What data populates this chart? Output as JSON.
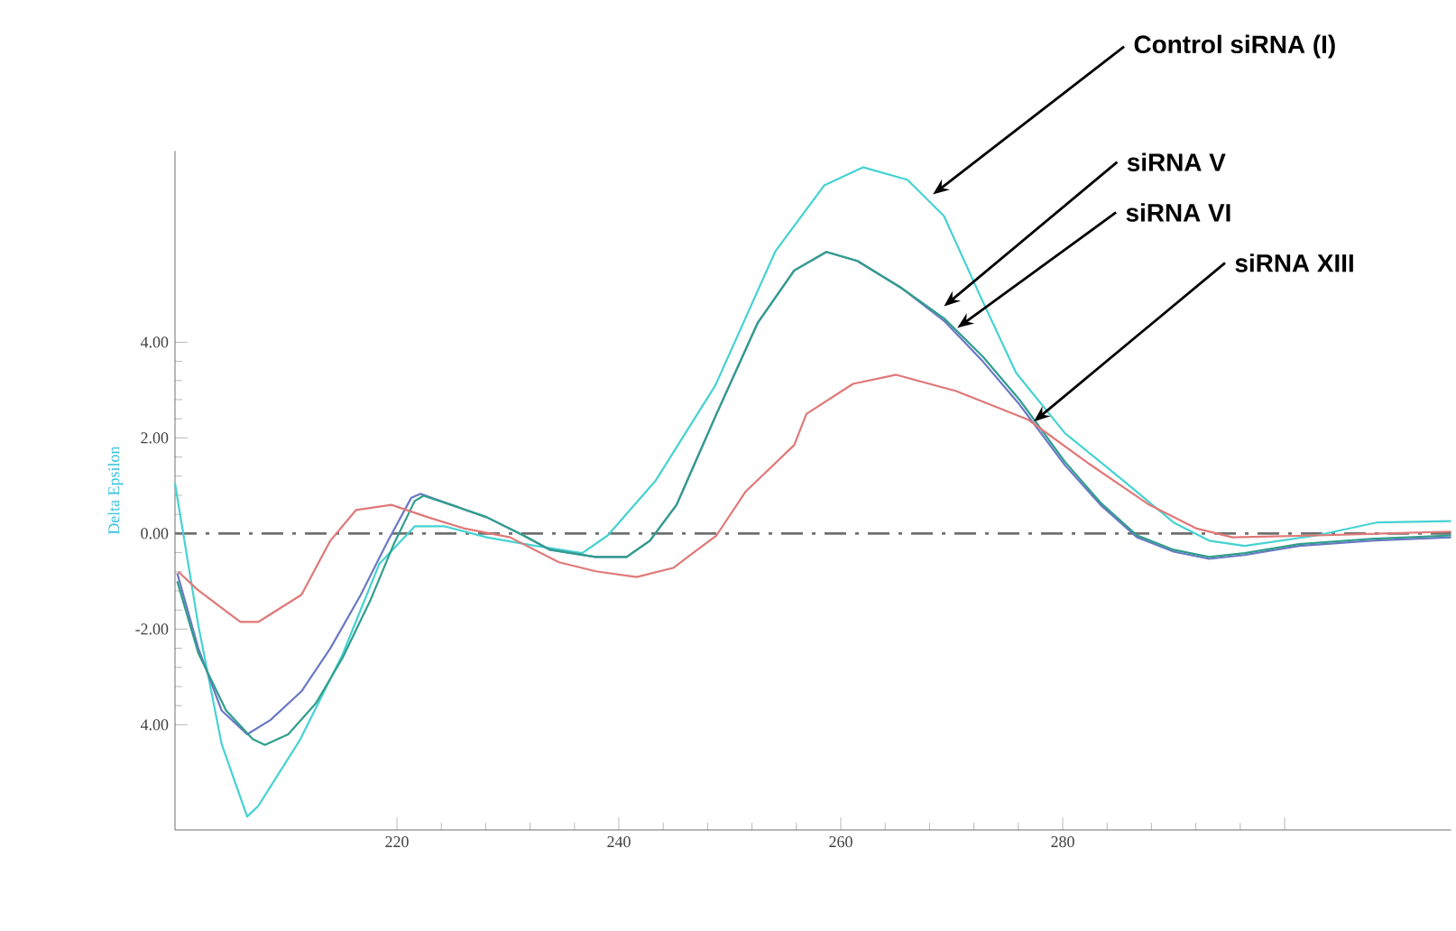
{
  "chart_data": {
    "type": "line",
    "ylabel": "Delta Epsilon",
    "xlim": [
      200,
      315
    ],
    "ylim": [
      -6.2,
      8
    ],
    "xticks": [
      220,
      240,
      260,
      280,
      {
        "value": 300,
        "label": null
      }
    ],
    "yticks": [
      {
        "value": -4,
        "label": "4.00"
      },
      {
        "value": -2,
        "label": "-2.00"
      },
      {
        "value": 0,
        "label": "0.00"
      },
      {
        "value": 2,
        "label": "2.00"
      },
      {
        "value": 4,
        "label": "4.00"
      }
    ],
    "grid": false,
    "marker": "none",
    "line_style": "solid",
    "series": [
      {
        "color": "#45d2d2",
        "x": [
          200,
          202.1,
          204.2,
          206.5,
          207.5,
          211.3,
          215.1,
          218.4,
          221.6,
          224.3,
          228.1,
          232.5,
          236.7,
          239,
          243.3,
          248.7,
          254.1,
          258.5,
          262,
          266,
          269.3,
          272.5,
          275.8,
          280.2,
          285.5,
          290,
          293.2,
          296.4,
          302.9,
          308.3,
          315
        ],
        "values": [
          1.05,
          -1.92,
          -4.4,
          -5.92,
          -5.7,
          -4.3,
          -2.53,
          -0.64,
          0.15,
          0.15,
          -0.08,
          -0.26,
          -0.41,
          -0.04,
          1.1,
          3.1,
          5.9,
          7.28,
          7.66,
          7.4,
          6.64,
          5.0,
          3.36,
          2.1,
          1.1,
          0.23,
          -0.15,
          -0.26,
          -0.04,
          0.23,
          0.26
        ]
      },
      {
        "color": "#6a78c4",
        "x": [
          200.2,
          202.1,
          204.2,
          206.5,
          208.6,
          211.4,
          214,
          216.7,
          219.2,
          221.3,
          222.1,
          224.9,
          228.1,
          231.4,
          233.8,
          237.9,
          240.7,
          242.8,
          245.2,
          248.8,
          252.5,
          255.8,
          258.7,
          261.5,
          265.5,
          269.3,
          272.8,
          276.1,
          280.2,
          283.4,
          286.7,
          290,
          293.2,
          296.4,
          301.3,
          307.8,
          315
        ],
        "values": [
          -0.83,
          -2.4,
          -3.7,
          -4.2,
          -3.9,
          -3.3,
          -2.4,
          -1.3,
          -0.15,
          0.75,
          0.83,
          0.6,
          0.34,
          -0.04,
          -0.34,
          -0.49,
          -0.49,
          -0.15,
          0.6,
          2.5,
          4.4,
          5.5,
          5.89,
          5.7,
          5.13,
          4.45,
          3.6,
          2.7,
          1.43,
          0.6,
          -0.08,
          -0.38,
          -0.53,
          -0.45,
          -0.26,
          -0.15,
          -0.08
        ]
      },
      {
        "color": "#2f9e8c",
        "x": [
          200.2,
          202.1,
          204.6,
          207,
          208.1,
          210.2,
          212.7,
          215.1,
          217.6,
          219.7,
          221.6,
          222.4,
          224.9,
          228.1,
          231.4,
          233.8,
          237.9,
          240.7,
          242.8,
          245.2,
          248.8,
          252.5,
          255.8,
          258.7,
          261.5,
          265.5,
          269.3,
          272.8,
          276.1,
          280.2,
          283.4,
          286.7,
          290,
          293.2,
          296.4,
          301.3,
          307.8,
          315
        ],
        "values": [
          -1.0,
          -2.5,
          -3.7,
          -4.3,
          -4.42,
          -4.2,
          -3.55,
          -2.6,
          -1.4,
          -0.23,
          0.68,
          0.79,
          0.6,
          0.34,
          -0.04,
          -0.34,
          -0.49,
          -0.49,
          -0.15,
          0.6,
          2.5,
          4.4,
          5.5,
          5.89,
          5.7,
          5.13,
          4.5,
          3.7,
          2.8,
          1.5,
          0.65,
          -0.04,
          -0.34,
          -0.49,
          -0.41,
          -0.22,
          -0.11,
          -0.04
        ]
      },
      {
        "color": "#e07878",
        "x": [
          200.3,
          202,
          205.9,
          207.5,
          211.4,
          214,
          216.3,
          219.5,
          222.8,
          226,
          230.2,
          234.6,
          237.9,
          241.6,
          244.9,
          248.8,
          251.4,
          255.8,
          256.9,
          261.1,
          265,
          270.4,
          276.9,
          282.3,
          287.8,
          292,
          295.3,
          302.9,
          315
        ],
        "values": [
          -0.8,
          -1.17,
          -1.85,
          -1.85,
          -1.28,
          -0.15,
          0.49,
          0.6,
          0.34,
          0.11,
          -0.08,
          -0.6,
          -0.79,
          -0.91,
          -0.72,
          -0.04,
          0.87,
          1.85,
          2.5,
          3.13,
          3.32,
          2.98,
          2.38,
          1.47,
          0.6,
          0.11,
          -0.08,
          -0.04,
          0.04
        ]
      }
    ],
    "ref_lines": [
      {
        "axis": "y",
        "value": 0,
        "color": "#707070",
        "line_style": "dashdot"
      }
    ],
    "annotations": [
      {
        "text": "Control siRNA (I)",
        "x": 268.3,
        "y": 7.09
      },
      {
        "text": "siRNA V",
        "x": 269.3,
        "y": 4.75
      },
      {
        "text": "siRNA VI",
        "x": 270.5,
        "y": 4.3
      },
      {
        "text": "siRNA XIII",
        "x": 277.4,
        "y": 2.34
      }
    ]
  }
}
